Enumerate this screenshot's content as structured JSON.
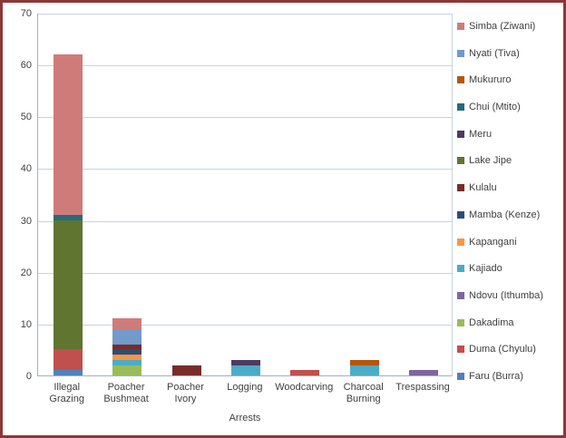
{
  "chart_data": {
    "type": "bar",
    "stacked": true,
    "title": "",
    "xlabel": "Arrests",
    "ylabel": "",
    "ylim": [
      0,
      70
    ],
    "ytick_interval": 10,
    "grid": true,
    "legend_position": "right",
    "legend_order": "reversed",
    "categories": [
      "Illegal Grazing",
      "Poacher Bushmeat",
      "Poacher Ivory",
      "Logging",
      "Woodcarving",
      "Charcoal Burning",
      "Trespassing"
    ],
    "series": [
      {
        "name": "Faru (Burra)",
        "color": "#4F81BD",
        "values": [
          1,
          0,
          0,
          0,
          0,
          0,
          0
        ]
      },
      {
        "name": "Duma (Chyulu)",
        "color": "#C0504D",
        "values": [
          4,
          0,
          0,
          0,
          1,
          0,
          0
        ]
      },
      {
        "name": "Dakadima",
        "color": "#9BBB59",
        "values": [
          0,
          2,
          0,
          0,
          0,
          0,
          0
        ]
      },
      {
        "name": "Ndovu (Ithumba)",
        "color": "#8064A2",
        "values": [
          0,
          0,
          0,
          0,
          0,
          0,
          1
        ]
      },
      {
        "name": "Kajiado",
        "color": "#4BACC6",
        "values": [
          0,
          1,
          0,
          2,
          0,
          2,
          0
        ]
      },
      {
        "name": "Kapangani",
        "color": "#F79646",
        "values": [
          0,
          1,
          0,
          0,
          0,
          0,
          0
        ]
      },
      {
        "name": "Mamba (Kenze)",
        "color": "#2C4D75",
        "values": [
          0,
          1,
          0,
          0,
          0,
          0,
          0
        ]
      },
      {
        "name": "Kulalu",
        "color": "#772C2A",
        "values": [
          0,
          1,
          2,
          0,
          0,
          0,
          0
        ]
      },
      {
        "name": "Lake Jipe",
        "color": "#5F7530",
        "values": [
          25,
          0,
          0,
          0,
          0,
          0,
          0
        ]
      },
      {
        "name": "Meru",
        "color": "#4D3B62",
        "values": [
          0,
          0,
          0,
          1,
          0,
          0,
          0
        ]
      },
      {
        "name": "Chui (Mtito)",
        "color": "#276A7D",
        "values": [
          1,
          0,
          0,
          0,
          0,
          0,
          0
        ]
      },
      {
        "name": "Mukururo",
        "color": "#B65708",
        "values": [
          0,
          0,
          0,
          0,
          0,
          1,
          0
        ]
      },
      {
        "name": "Nyati (Tiva)",
        "color": "#729ACA",
        "values": [
          0,
          3,
          0,
          0,
          0,
          0,
          0
        ]
      },
      {
        "name": "Simba (Ziwani)",
        "color": "#CF7B79",
        "values": [
          31,
          2,
          0,
          0,
          0,
          0,
          0
        ]
      }
    ]
  },
  "axes": {
    "x_title": "Arrests",
    "y_ticks": [
      "0",
      "10",
      "20",
      "30",
      "40",
      "50",
      "60",
      "70"
    ]
  },
  "colors": {
    "border": "#8C3736",
    "gridline": "#C6D4E1",
    "axis_line": "#9FB2C2",
    "text": "#3F3F3F",
    "background": "#FFFFFF"
  }
}
